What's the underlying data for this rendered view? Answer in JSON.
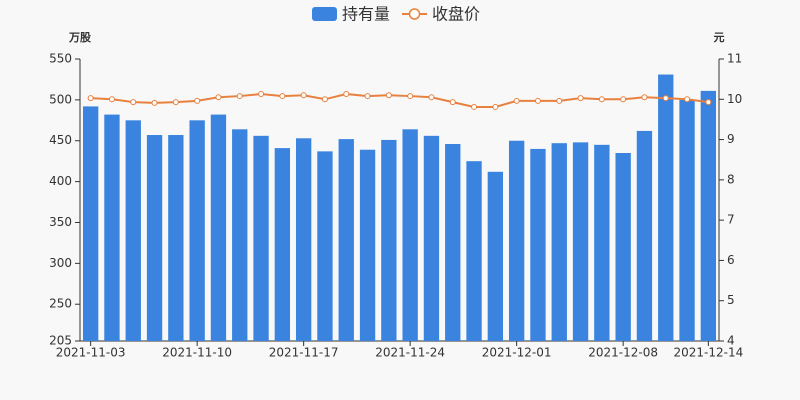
{
  "chart_data": {
    "type": "bar-line",
    "ylabel": "万股",
    "y2label": "元",
    "categories": [
      "2021-11-03",
      null,
      null,
      null,
      null,
      "2021-11-10",
      null,
      null,
      null,
      null,
      "2021-11-17",
      null,
      null,
      null,
      null,
      "2021-11-24",
      null,
      null,
      null,
      null,
      "2021-12-01",
      null,
      null,
      null,
      null,
      "2021-12-08",
      null,
      null,
      null,
      "2021-12-14"
    ],
    "series": [
      {
        "name": "持有量",
        "type": "bar",
        "color": "#3a84e0",
        "values": [
          492,
          482,
          475,
          457,
          457,
          475,
          482,
          464,
          456,
          441,
          453,
          437,
          452,
          439,
          451,
          464,
          456,
          446,
          425,
          412,
          450,
          440,
          447,
          448,
          445,
          435,
          462,
          531,
          500,
          511
        ]
      },
      {
        "name": "收盘价",
        "type": "line",
        "axis": "y2",
        "color": "#e8803f",
        "values": [
          10.03,
          10.0,
          9.93,
          9.91,
          9.93,
          9.96,
          10.05,
          10.08,
          10.13,
          10.08,
          10.1,
          10.0,
          10.13,
          10.08,
          10.1,
          10.08,
          10.05,
          9.93,
          9.81,
          9.81,
          9.96,
          9.96,
          9.96,
          10.03,
          10.0,
          10.0,
          10.05,
          10.03,
          10.0,
          9.93
        ]
      }
    ],
    "ylim": [
      205,
      550
    ],
    "yticks": [
      205,
      250,
      300,
      350,
      400,
      450,
      500,
      550
    ],
    "y2lim": [
      4,
      11
    ],
    "y2ticks": [
      4,
      5,
      6,
      7,
      8,
      9,
      10,
      11
    ],
    "grid": false,
    "legend": "top"
  }
}
